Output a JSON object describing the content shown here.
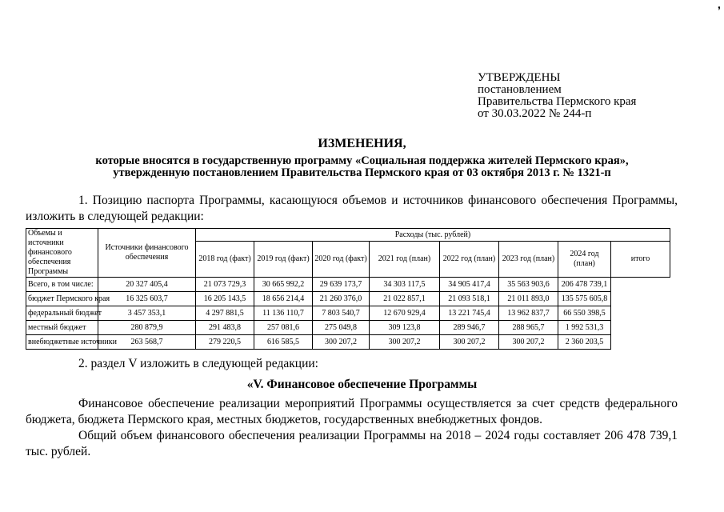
{
  "approval": [
    "УТВЕРЖДЕНЫ",
    "постановлением",
    "Правительства Пермского края",
    "от 30.03.2022 № 244-п"
  ],
  "title": "ИЗМЕНЕНИЯ,",
  "subtitle": [
    "которые вносятся в государственную программу «Социальная поддержка жителей Пермского края»,",
    "утвержденную постановлением Правительства Пермского края от 03 октября 2013 г. № 1321-п"
  ],
  "para1": "1. Позицию паспорта Программы, касающуюся объемов и источников финансового обеспечения Программы, изложить в следующей редакции:",
  "table": {
    "row_label": "Объемы и источники финансового обеспечения Программы",
    "sources_header": "Источники финансового обеспечения",
    "expenses_header": "Расходы (тыс. рублей)",
    "columns": [
      "2018 год (факт)",
      "2019 год (факт)",
      "2020 год (факт)",
      "2021 год (план)",
      "2022 год (план)",
      "2023 год (план)",
      "2024 год (план)",
      "итого"
    ],
    "rows": [
      {
        "label": "Всего, в том числе:",
        "values": [
          "20 327 405,4",
          "21 073 729,3",
          "30 665 992,2",
          "29 639 173,7",
          "34 303 117,5",
          "34 905 417,4",
          "35 563 903,6",
          "206 478 739,1"
        ]
      },
      {
        "label": "бюджет Пермского края",
        "values": [
          "16 325 603,7",
          "16 205 143,5",
          "18 656 214,4",
          "21 260 376,0",
          "21 022 857,1",
          "21 093 518,1",
          "21 011 893,0",
          "135 575 605,8"
        ]
      },
      {
        "label": "федеральный бюджет",
        "values": [
          "3 457 353,1",
          "4 297 881,5",
          "11 136 110,7",
          "7 803 540,7",
          "12 670 929,4",
          "13 221 745,4",
          "13 962 837,7",
          "66 550 398,5"
        ]
      },
      {
        "label": "местный бюджет",
        "values": [
          "280 879,9",
          "291 483,8",
          "257 081,6",
          "275 049,8",
          "309 123,8",
          "289 946,7",
          "288 965,7",
          "1 992 531,3"
        ]
      },
      {
        "label": "внебюджетные источники",
        "values": [
          "263 568,7",
          "279 220,5",
          "616 585,5",
          "300 207,2",
          "300 207,2",
          "300 207,2",
          "300 207,2",
          "2 360 203,5"
        ]
      }
    ]
  },
  "para2": "2. раздел V изложить в следующей редакции:",
  "section_title": "«V. Финансовое обеспечение Программы",
  "para3": "Финансовое обеспечение реализации мероприятий Программы осуществляется за счет средств федерального бюджета, бюджета Пермского края, местных бюджетов, государственных внебюджетных фондов.",
  "para4": "Общий объем финансового обеспечения реализации Программы на 2018 – 2024 годы составляет 206 478 739,1 тыс. рублей."
}
